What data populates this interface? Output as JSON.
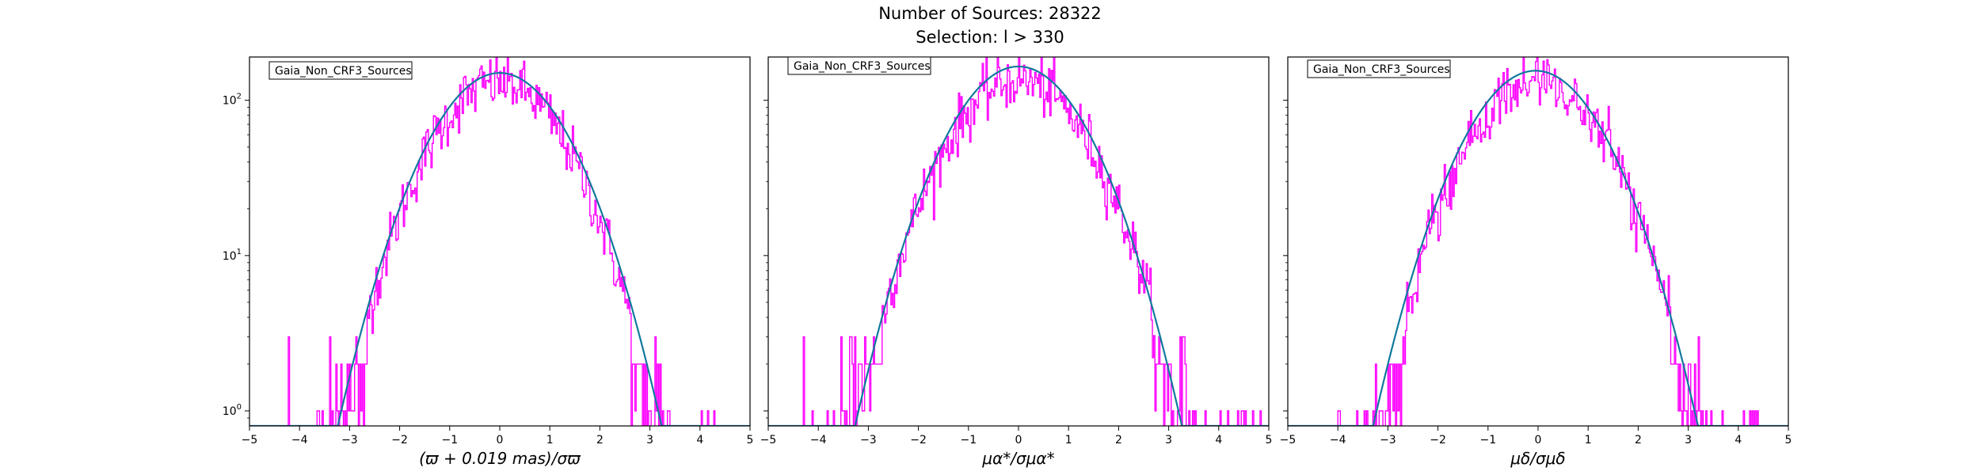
{
  "figure": {
    "title_line1": "Number of Sources: 28322",
    "title_line2": "Selection: l > 330"
  },
  "colors": {
    "histogram": "#ff00ff",
    "fit": "#1f77b4",
    "fit_alt": "#008080",
    "axes": "#000000"
  },
  "chart_data": [
    {
      "type": "histogram+line",
      "legend": "Gaia_Non_CRF3_Sources",
      "xlabel": "(ϖ + 0.019 mas)/σϖ",
      "ylabel": "",
      "xlim": [
        -5,
        5
      ],
      "ylim": [
        0.8,
        190
      ],
      "yscale": "log",
      "x_ticks": [
        "−5",
        "−4",
        "−3",
        "−2",
        "−1",
        "0",
        "1",
        "2",
        "3",
        "4",
        "5"
      ],
      "y_ticks": [
        1,
        10,
        100
      ],
      "histogram": {
        "mu": -0.02,
        "sigma": 1.0,
        "peak": 130,
        "min_x": -4.3,
        "max_x": 4.3,
        "noise": 0.35
      },
      "gaussian_fit": {
        "mu": 0.0,
        "sigma": 1.0,
        "peak": 150
      }
    },
    {
      "type": "histogram+line",
      "legend": "Gaia_Non_CRF3_Sources",
      "xlabel": "μα*/σμα*",
      "ylabel": "",
      "xlim": [
        -5,
        5
      ],
      "ylim": [
        0.8,
        190
      ],
      "yscale": "log",
      "x_ticks": [
        "−5",
        "−4",
        "−3",
        "−2",
        "−1",
        "0",
        "1",
        "2",
        "3",
        "4",
        "5"
      ],
      "y_ticks": [
        1,
        10,
        100
      ],
      "histogram": {
        "mu": 0.0,
        "sigma": 1.03,
        "peak": 135,
        "min_x": -4.3,
        "max_x": 4.9,
        "noise": 0.35
      },
      "gaussian_fit": {
        "mu": 0.0,
        "sigma": 1.0,
        "peak": 165
      }
    },
    {
      "type": "histogram+line",
      "legend": "Gaia_Non_CRF3_Sources",
      "xlabel": "μδ/σμδ",
      "ylabel": "",
      "xlim": [
        -5,
        5
      ],
      "ylim": [
        0.8,
        190
      ],
      "yscale": "log",
      "x_ticks": [
        "−5",
        "−4",
        "−3",
        "−2",
        "−1",
        "0",
        "1",
        "2",
        "3",
        "4",
        "5"
      ],
      "y_ticks": [
        1,
        10,
        100
      ],
      "histogram": {
        "mu": 0.0,
        "sigma": 1.0,
        "peak": 132,
        "min_x": -4.1,
        "max_x": 4.4,
        "noise": 0.35
      },
      "gaussian_fit": {
        "mu": -0.05,
        "sigma": 1.0,
        "peak": 155
      }
    }
  ]
}
